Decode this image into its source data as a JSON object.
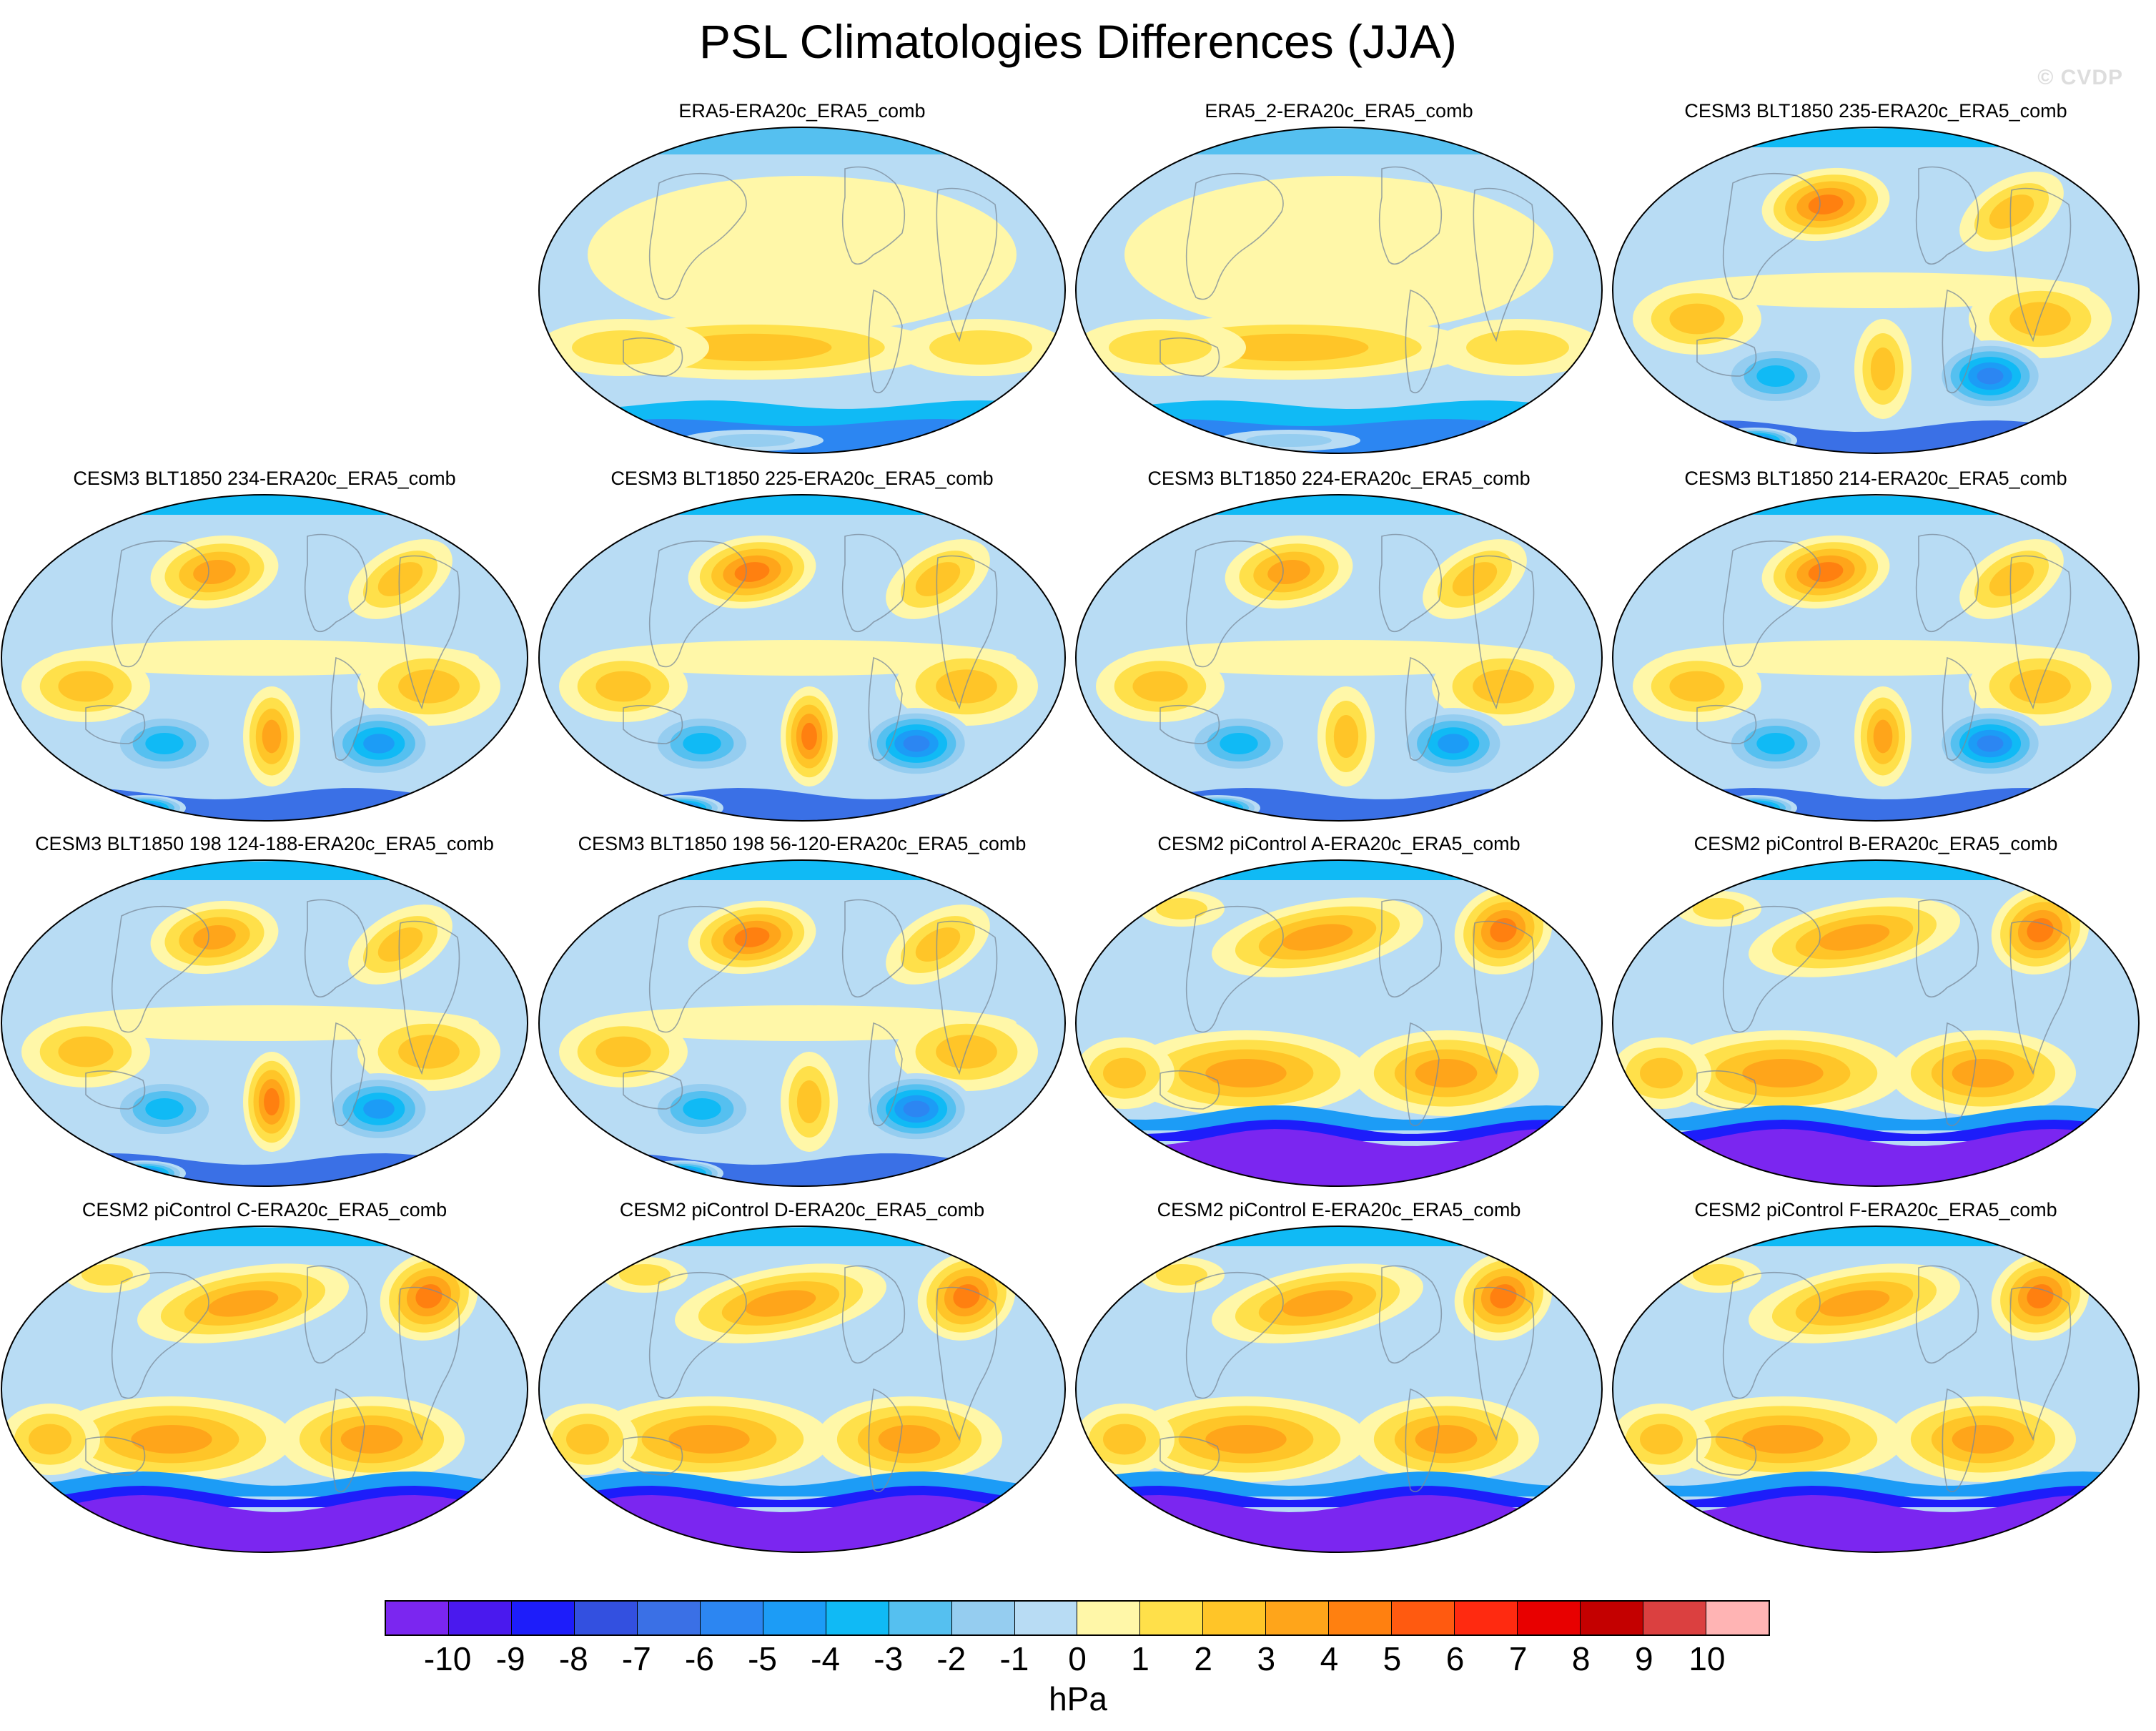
{
  "title": "PSL Climatologies Differences (JJA)",
  "copyright": "© CVDP",
  "units": "hPa",
  "colorbar": {
    "labels": [
      "-10",
      "-9",
      "-8",
      "-7",
      "-6",
      "-5",
      "-4",
      "-3",
      "-2",
      "-1",
      "0",
      "1",
      "2",
      "3",
      "4",
      "5",
      "6",
      "7",
      "8",
      "9",
      "10"
    ],
    "colors": [
      "#7b26f0",
      "#4a19ee",
      "#1d1dfa",
      "#3350e0",
      "#3a70e6",
      "#2c86f2",
      "#1c9cf6",
      "#10baf5",
      "#55c0f0",
      "#95cdf0",
      "#b8dcf4",
      "#fff7a8",
      "#ffe04a",
      "#ffc528",
      "#ffa51a",
      "#ff8010",
      "#ff5a10",
      "#ff2a10",
      "#e80000",
      "#c40000",
      "#db4040",
      "#ffb4b4"
    ]
  },
  "panels": [
    {
      "title": "ERA5-ERA20c_ERA5_comb",
      "style": "era",
      "variant": 1
    },
    {
      "title": "ERA5_2-ERA20c_ERA5_comb",
      "style": "era",
      "variant": 2
    },
    {
      "title": "CESM3 BLT1850 235-ERA20c_ERA5_comb",
      "style": "cesm3",
      "variant": 3
    },
    {
      "title": "CESM3 BLT1850 234-ERA20c_ERA5_comb",
      "style": "cesm3",
      "variant": 4
    },
    {
      "title": "CESM3 BLT1850 225-ERA20c_ERA5_comb",
      "style": "cesm3",
      "variant": 5
    },
    {
      "title": "CESM3 BLT1850 224-ERA20c_ERA5_comb",
      "style": "cesm3",
      "variant": 6
    },
    {
      "title": "CESM3 BLT1850 214-ERA20c_ERA5_comb",
      "style": "cesm3",
      "variant": 7
    },
    {
      "title": "CESM3 BLT1850 198 124-188-ERA20c_ERA5_comb",
      "style": "cesm3",
      "variant": 8
    },
    {
      "title": "CESM3 BLT1850 198 56-120-ERA20c_ERA5_comb",
      "style": "cesm3",
      "variant": 9
    },
    {
      "title": "CESM2 piControl A-ERA20c_ERA5_comb",
      "style": "cesm2",
      "variant": 10
    },
    {
      "title": "CESM2 piControl B-ERA20c_ERA5_comb",
      "style": "cesm2",
      "variant": 11
    },
    {
      "title": "CESM2 piControl C-ERA20c_ERA5_comb",
      "style": "cesm2",
      "variant": 12
    },
    {
      "title": "CESM2 piControl D-ERA20c_ERA5_comb",
      "style": "cesm2",
      "variant": 13
    },
    {
      "title": "CESM2 piControl E-ERA20c_ERA5_comb",
      "style": "cesm2",
      "variant": 14
    },
    {
      "title": "CESM2 piControl F-ERA20c_ERA5_comb",
      "style": "cesm2",
      "variant": 15
    }
  ]
}
